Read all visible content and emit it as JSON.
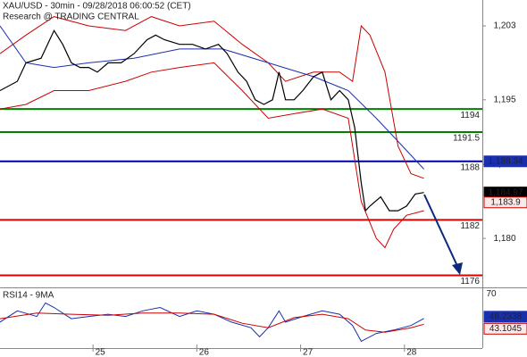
{
  "chart_data": {
    "type": "line",
    "title": "XAU/USD - 30min - 09/28/2018 06:00:52 (CET)",
    "subtitle": "Research @ TRADING CENTRAL",
    "xlim": [
      0,
      223
    ],
    "xticks": [
      {
        "value": 43,
        "label": "25"
      },
      {
        "value": 91,
        "label": "26"
      },
      {
        "value": 139,
        "label": "27"
      },
      {
        "value": 187,
        "label": "28"
      }
    ],
    "ylim": [
      1174.7,
      1205.8
    ],
    "yticks": [
      {
        "value": 1203,
        "label": "1,203"
      },
      {
        "value": 1195,
        "label": "1,195"
      },
      {
        "value": 1188,
        "label": "1,188"
      },
      {
        "value": 1180,
        "label": "1,180"
      }
    ],
    "lines": [
      {
        "color": "#cc0000",
        "x": [
          0,
          12,
          25,
          41,
          58,
          70,
          83,
          99,
          112,
          124,
          132,
          145,
          157,
          163,
          167,
          171,
          178,
          184,
          190,
          196
        ],
        "values": [
          1200,
          1202,
          1204,
          1203,
          1202.5,
          1204,
          1203,
          1203.5,
          1201,
          1199,
          1197,
          1198,
          1198,
          1197,
          1203,
          1202,
          1198,
          1190,
          1187,
          1186.5
        ]
      },
      {
        "color": "#cc0000",
        "x": [
          0,
          12,
          25,
          41,
          58,
          70,
          83,
          99,
          112,
          124,
          136,
          149,
          161,
          167,
          174,
          178,
          182,
          188,
          196
        ],
        "values": [
          1194,
          1194.5,
          1196,
          1196,
          1197,
          1198,
          1198.5,
          1199,
          1196,
          1193,
          1193.5,
          1194,
          1193,
          1184,
          1180,
          1179,
          1181,
          1182.5,
          1183
        ]
      },
      {
        "color": "#1a2fb0",
        "x": [
          0,
          12,
          25,
          41,
          62,
          83,
          103,
          124,
          145,
          161,
          174,
          184,
          196
        ],
        "values": [
          1203,
          1199,
          1198.5,
          1199,
          1199.5,
          1200.5,
          1200.5,
          1199,
          1197.5,
          1196,
          1193,
          1190.5,
          1187.5
        ]
      },
      {
        "color": "#000000",
        "x": [
          0,
          8,
          12,
          19,
          25,
          29,
          33,
          37,
          41,
          45,
          50,
          56,
          62,
          68,
          72,
          76,
          83,
          89,
          95,
          101,
          105,
          110,
          114,
          118,
          122,
          126,
          129,
          132,
          136,
          140,
          145,
          149,
          153,
          157,
          161,
          164,
          167,
          169,
          171,
          176,
          180,
          184,
          188,
          192,
          196
        ],
        "values": [
          1196,
          1197,
          1199,
          1199.5,
          1202.5,
          1201,
          1199,
          1198.5,
          1198.5,
          1198,
          1199,
          1199,
          1200,
          1201.5,
          1202,
          1201.5,
          1201,
          1201,
          1200.5,
          1201,
          1200,
          1198,
          1197,
          1195,
          1194.5,
          1195,
          1198,
          1195,
          1195,
          1196,
          1197.5,
          1198,
          1195,
          1196,
          1195,
          1192,
          1186,
          1183,
          1183.5,
          1184.5,
          1183,
          1183,
          1183.5,
          1184.8,
          1184.97
        ]
      }
    ],
    "levels": [
      {
        "value": 1194,
        "label": "1194",
        "color": "#008000"
      },
      {
        "value": 1191.5,
        "label": "1191.5",
        "color": "#008000"
      },
      {
        "value": 1188.34,
        "label": "1188",
        "color": "#000099"
      },
      {
        "value": 1182,
        "label": "1182",
        "color": "#dd0000"
      },
      {
        "value": 1176,
        "label": "1176",
        "color": "#dd0000"
      }
    ],
    "price_labels": [
      {
        "value": 1188.34,
        "label": "1,188.34",
        "color": "#1a2fb0"
      },
      {
        "value": 1184.97,
        "label": "1,184.97",
        "color": "#000000"
      },
      {
        "value": 1183.9,
        "label": "1,183.9",
        "color": "#cc0000"
      }
    ],
    "rsi": {
      "title": "RSI14 - 9MA",
      "ylim": [
        22,
        75
      ],
      "yticks": [
        70
      ],
      "lines": [
        {
          "color": "#1a2fb0",
          "x": [
            0,
            8,
            17,
            21,
            25,
            33,
            41,
            50,
            58,
            66,
            74,
            83,
            91,
            99,
            107,
            116,
            120,
            124,
            129,
            132,
            140,
            149,
            157,
            163,
            167,
            174,
            182,
            190,
            196
          ],
          "values": [
            45,
            55,
            50,
            62,
            58,
            48,
            50,
            52,
            50,
            55,
            58,
            50,
            55,
            52,
            45,
            40,
            32,
            40,
            55,
            45,
            50,
            55,
            52,
            42,
            28,
            35,
            38,
            42,
            48.2338
          ]
        },
        {
          "color": "#cc0000",
          "x": [
            0,
            17,
            33,
            50,
            66,
            83,
            99,
            112,
            124,
            136,
            149,
            161,
            169,
            178,
            190,
            196
          ],
          "values": [
            48,
            53,
            52,
            51,
            53,
            53,
            52,
            44,
            40,
            49,
            52,
            48,
            38,
            36,
            40,
            43.1045
          ]
        }
      ]
    }
  }
}
